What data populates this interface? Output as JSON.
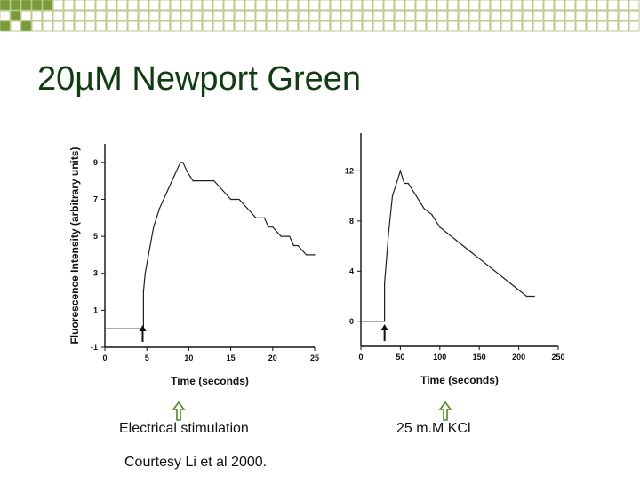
{
  "slide": {
    "title": "20µM Newport Green",
    "caption_left": "Electrical stimulation",
    "caption_right": "25 m.M KCl",
    "credit": "Courtesy Li et al 2000."
  },
  "colors": {
    "title": "#0f3d0f",
    "corner_fill": "#7a9a3a",
    "corner_outline": "#a8c070",
    "arrow_green": "#4f8a1e"
  },
  "chart_data": [
    {
      "type": "line",
      "title": "",
      "xlabel": "Time (seconds)",
      "ylabel": "Fluorescence Intensity (arbitrary units)",
      "xlim": [
        0,
        25
      ],
      "ylim": [
        -1,
        10
      ],
      "x_ticks": [
        0,
        5,
        10,
        15,
        20,
        25
      ],
      "y_ticks": [
        -1,
        1,
        3,
        5,
        7,
        9
      ],
      "stimulus_marker_x": 4.5,
      "series": [
        {
          "x": [
            0,
            4.6,
            4.6,
            4.8,
            5.2,
            5.8,
            6.5,
            7.5,
            8,
            8.5,
            9,
            9.3,
            9.8,
            10.5,
            11,
            12,
            13,
            14,
            15,
            16,
            17,
            18,
            19,
            19.5,
            20,
            21,
            22,
            22.5,
            23,
            24,
            25
          ],
          "y": [
            0,
            0,
            2,
            3,
            4,
            5.5,
            6.5,
            7.5,
            8,
            8.5,
            9,
            9,
            8.5,
            8,
            8,
            8,
            8,
            7.5,
            7,
            7,
            6.5,
            6,
            6,
            5.5,
            5.5,
            5,
            5,
            4.5,
            4.5,
            4,
            4
          ]
        }
      ]
    },
    {
      "type": "line",
      "title": "",
      "xlabel": "Time (seconds)",
      "ylabel": "",
      "xlim": [
        0,
        250
      ],
      "ylim": [
        -2,
        15
      ],
      "x_ticks": [
        0,
        50,
        100,
        150,
        200,
        250
      ],
      "y_ticks": [
        0,
        4,
        8,
        12
      ],
      "stimulus_marker_x": 30,
      "series": [
        {
          "x": [
            0,
            30,
            30,
            35,
            40,
            45,
            50,
            55,
            60,
            70,
            80,
            90,
            100,
            110,
            120,
            130,
            140,
            150,
            160,
            170,
            180,
            190,
            200,
            210,
            220
          ],
          "y": [
            0,
            0,
            3,
            7,
            10,
            11,
            12,
            11,
            11,
            10,
            9,
            8.5,
            7.5,
            7,
            6.5,
            6,
            5.5,
            5,
            4.5,
            4,
            3.5,
            3,
            2.5,
            2,
            2
          ]
        }
      ]
    }
  ]
}
